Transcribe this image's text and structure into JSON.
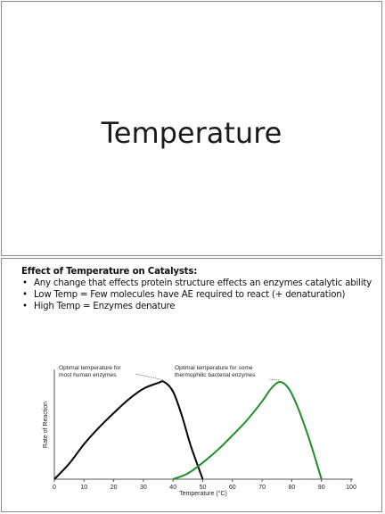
{
  "slide1": {
    "title": "Temperature"
  },
  "slide2": {
    "heading": "Effect of Temperature on Catalysts:",
    "bullets": [
      "Any change that effects protein structure effects an enzymes catalytic ability",
      "Low Temp = Few molecules have AE required to react (+ denaturation)",
      "High Temp = Enzymes denature"
    ]
  },
  "chart_data": {
    "type": "line",
    "xlabel": "Temperature (°C)",
    "ylabel": "Rate of Reaction",
    "xlim": [
      0,
      100
    ],
    "x_ticks": [
      "0",
      "10",
      "20",
      "30",
      "40",
      "50",
      "60",
      "70",
      "80",
      "90",
      "100"
    ],
    "grid": false,
    "legend": "none",
    "series": [
      {
        "color": "#000000",
        "x": [
          0,
          5,
          10,
          15,
          20,
          25,
          30,
          35,
          37,
          40,
          43,
          46,
          50
        ],
        "y": [
          0,
          0.16,
          0.36,
          0.53,
          0.68,
          0.82,
          0.93,
          0.99,
          1.0,
          0.9,
          0.65,
          0.34,
          0
        ]
      },
      {
        "color": "#1f8f2a",
        "x": [
          40,
          45,
          50,
          55,
          60,
          65,
          70,
          73,
          76,
          79,
          82,
          86,
          90
        ],
        "y": [
          0,
          0.06,
          0.17,
          0.3,
          0.45,
          0.61,
          0.8,
          0.93,
          1.0,
          0.93,
          0.74,
          0.4,
          0
        ]
      }
    ],
    "annotations": [
      {
        "text_lines": [
          "Optimal temperature for",
          "most human enzymes"
        ],
        "x": 37,
        "y": 1.0
      },
      {
        "text_lines": [
          "Optimal temperature for some",
          "thermophilic bacterial enzymes"
        ],
        "x": 76,
        "y": 1.0
      }
    ]
  }
}
